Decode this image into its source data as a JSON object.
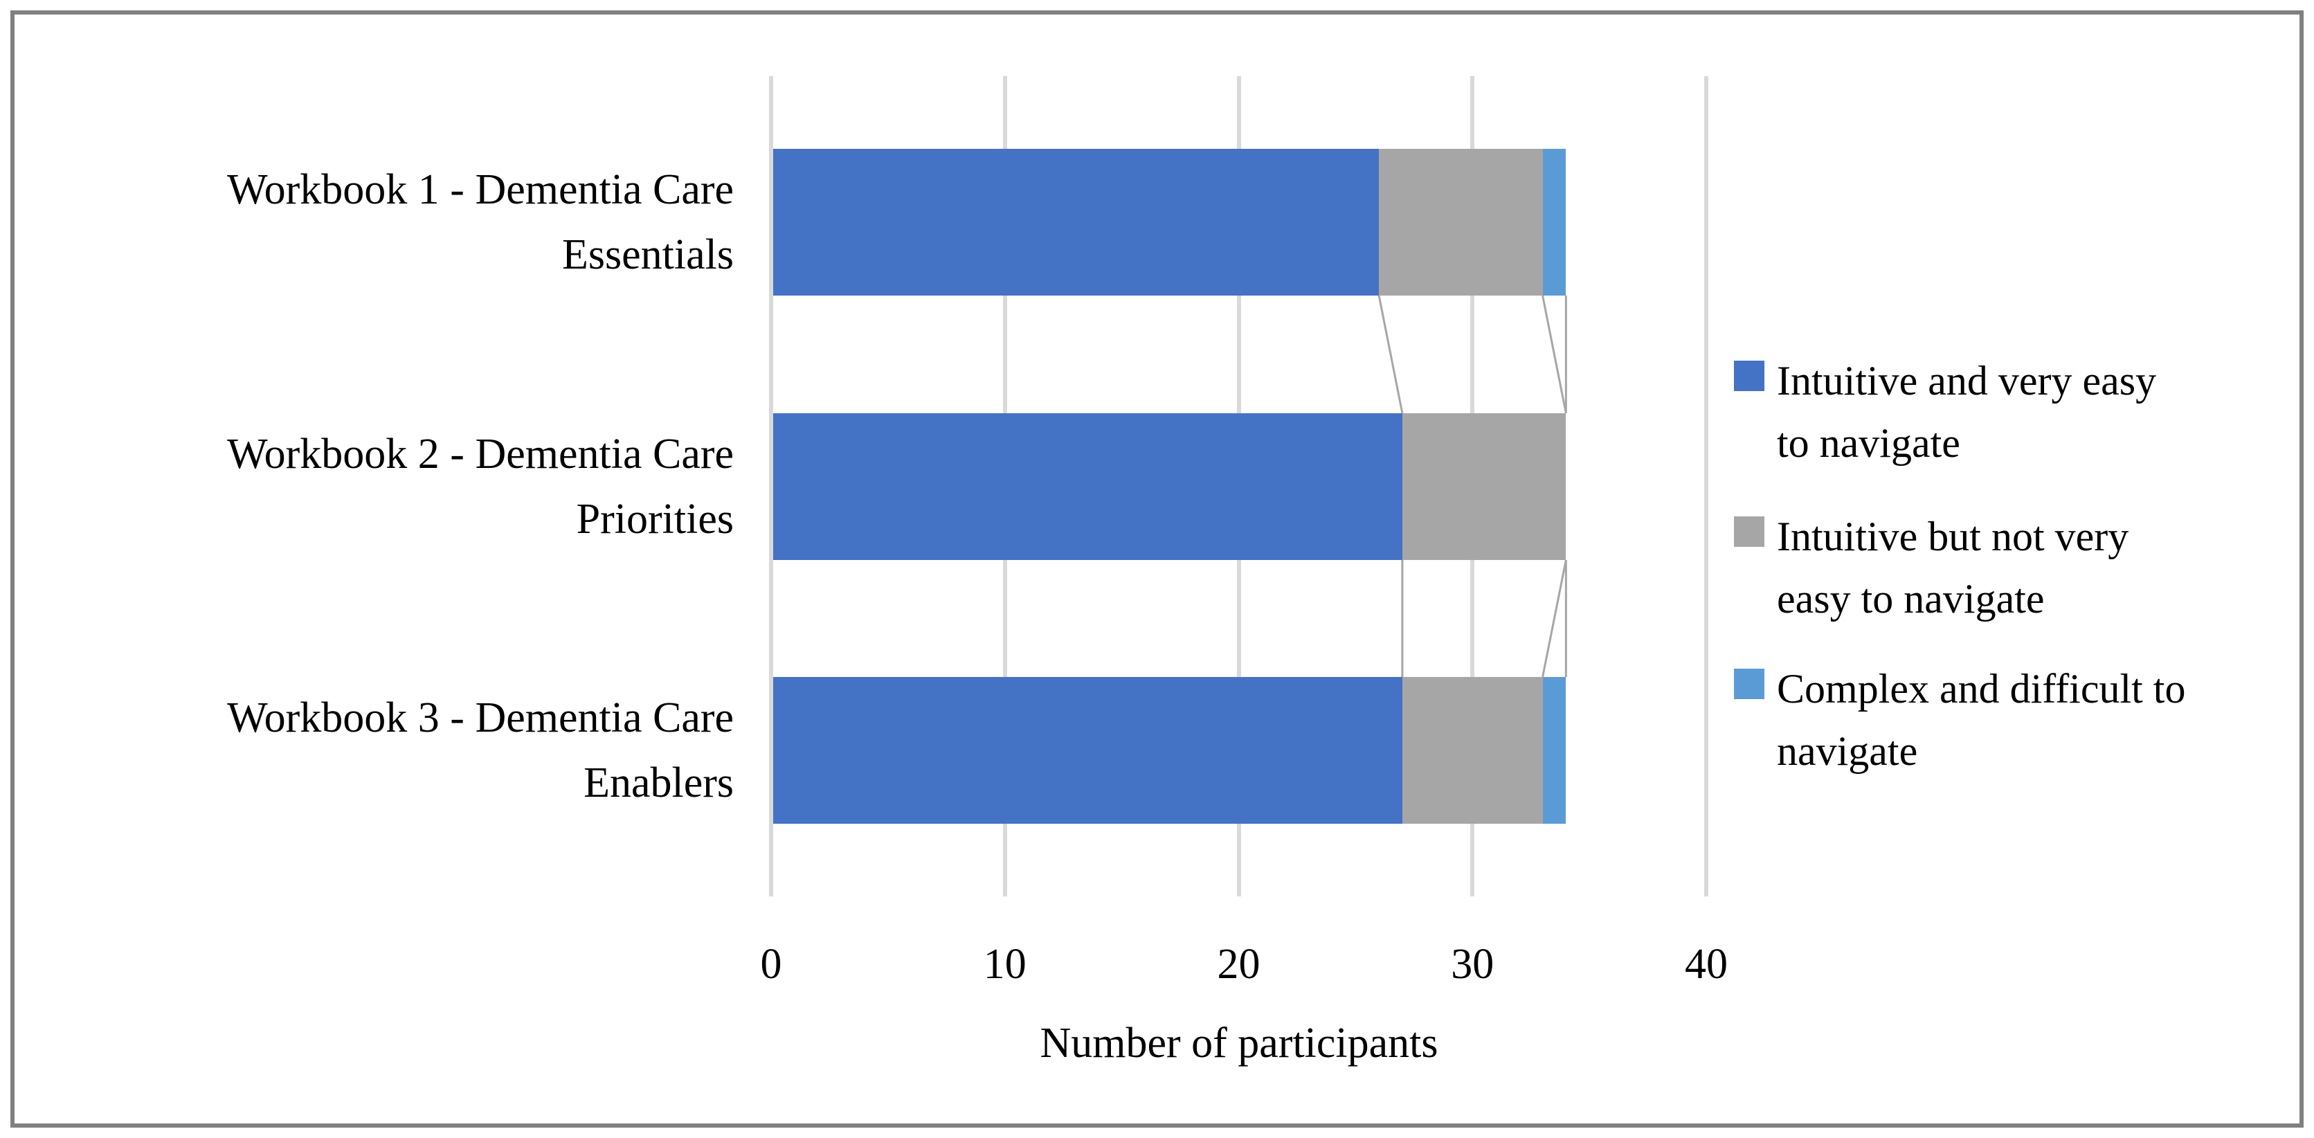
{
  "frame": {
    "border_color": "#808080",
    "background_color": "#ffffff"
  },
  "chart_data": {
    "type": "bar",
    "orientation": "horizontal",
    "stacked": true,
    "title": "",
    "xlabel": "Number of participants",
    "ylabel": "",
    "xlim": [
      0,
      40
    ],
    "x_ticks": [
      0,
      10,
      20,
      30,
      40
    ],
    "grid": true,
    "gridline_color": "#D9D9D9",
    "series_lines": true,
    "series_line_color": "#A6A6A6",
    "legend_position": "right",
    "categories": [
      "Workbook 1 - Dementia Care Essentials",
      "Workbook 2 - Dementia Care Priorities",
      "Workbook 3 - Dementia Care Enablers"
    ],
    "category_labels": [
      "Workbook 1 - Dementia Care\nEssentials",
      "Workbook 2 - Dementia Care\nPriorities",
      "Workbook 3 - Dementia Care\nEnablers"
    ],
    "series": [
      {
        "name": "Intuitive and very easy to navigate",
        "legend_label": "Intuitive and very easy\nto navigate",
        "color": "#4472C4",
        "values": [
          26,
          27,
          27
        ]
      },
      {
        "name": "Intuitive but not very easy to navigate",
        "legend_label": "Intuitive but not very\neasy to navigate",
        "color": "#A6A6A6",
        "values": [
          7,
          7,
          6
        ]
      },
      {
        "name": "Complex and difficult to navigate",
        "legend_label": "Complex and difficult to\nnavigate",
        "color": "#5B9BD5",
        "values": [
          1,
          0,
          1
        ]
      }
    ],
    "totals_per_category": [
      34,
      34,
      34
    ]
  }
}
